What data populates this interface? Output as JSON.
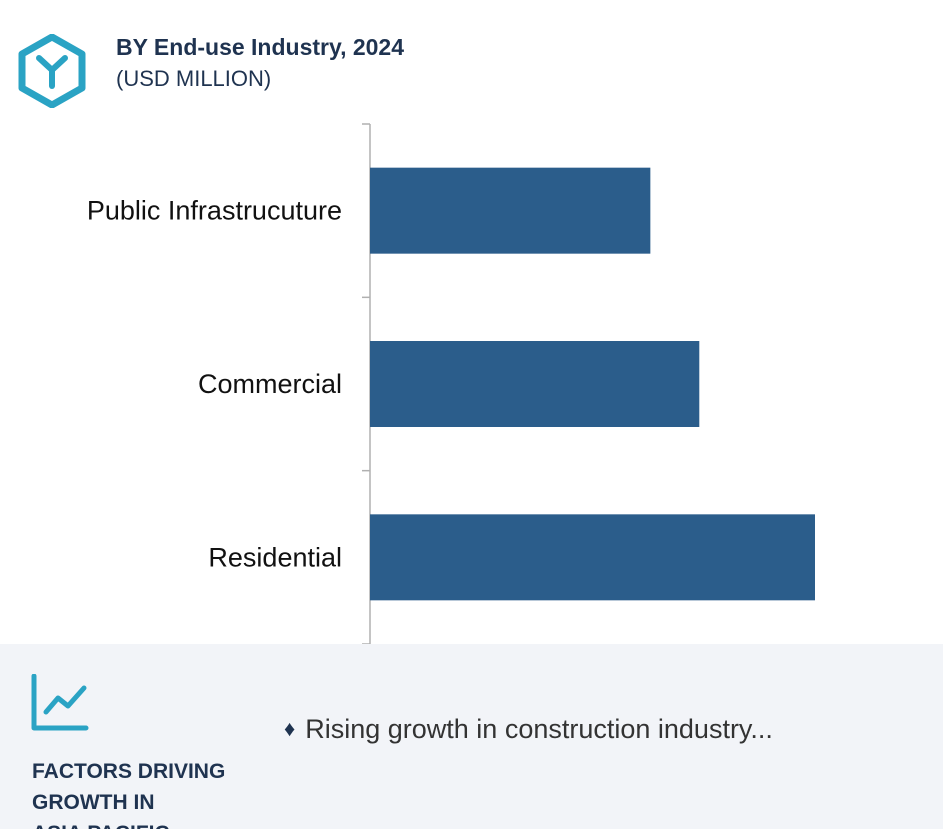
{
  "header": {
    "title": "BY End-use Industry, 2024",
    "subtitle": "(USD MILLION)",
    "logo_icon": "hexagon-y-logo-icon"
  },
  "chart_data": {
    "type": "bar",
    "orientation": "horizontal",
    "categories": [
      "Public Infrastrucuture",
      "Commercial",
      "Residential"
    ],
    "values": [
      63,
      74,
      100
    ],
    "xlim": [
      0,
      100
    ],
    "value_axis_visible": false,
    "grid": false,
    "legend": "none",
    "bar_color": "#2b5d8b"
  },
  "footer": {
    "icon": "line-chart-trend-icon",
    "heading_lines": [
      "FACTORS DRIVING",
      "GROWTH IN",
      "ASIA PACIFIC"
    ],
    "bullet_icon": "diamond-bullet-icon",
    "factor_text": "Rising growth in construction industry...",
    "accent_color": "#2aa3c4"
  }
}
